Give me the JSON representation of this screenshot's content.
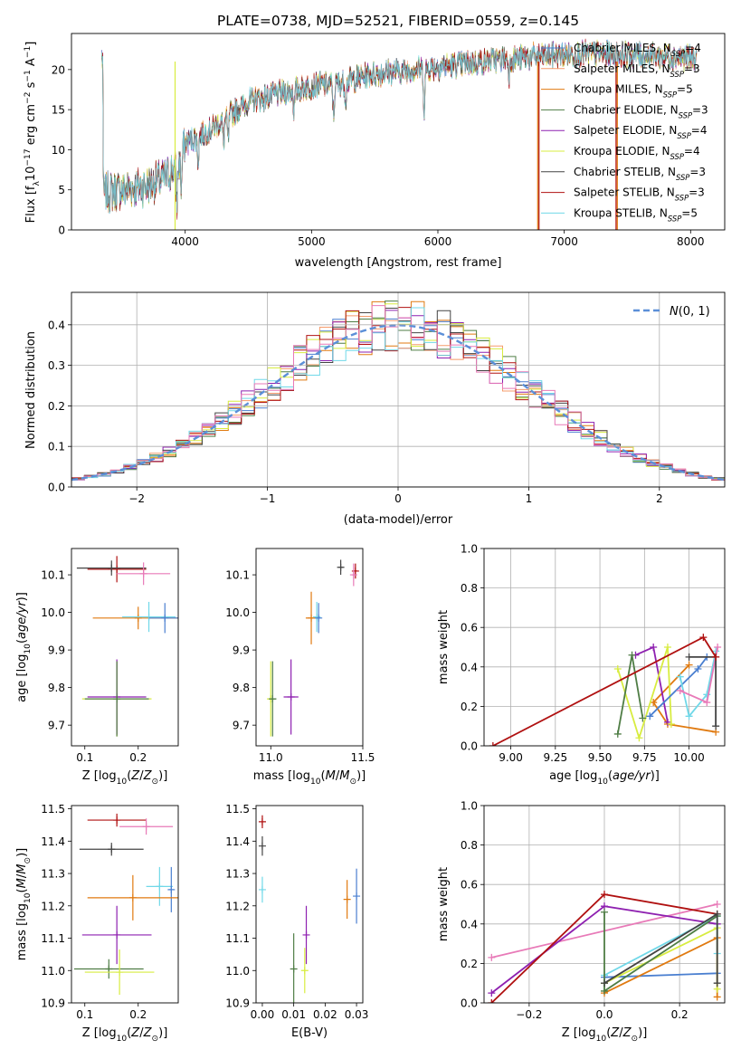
{
  "figure_title": "PLATE=0738, MJD=52521, FIBERID=0559, z=0.145",
  "colors": {
    "Chabrier MILES": "#4a7fd0",
    "Salpeter MILES": "#f59b6b",
    "Kroupa MILES": "#e07a10",
    "Chabrier ELODIE": "#4f7d45",
    "Salpeter ELODIE": "#8e20b0",
    "Kroupa ELODIE": "#d8ec40",
    "Chabrier STELIB": "#444444",
    "Salpeter STELIB": "#b01010",
    "Kroupa STELIB": "#70d8e8",
    "pink": "#e87ab8",
    "normal": "#5b8fd8"
  },
  "chart_data": [
    {
      "id": "spectrum",
      "type": "line",
      "xlabel": "wavelength [Angstrom, rest frame]",
      "ylabel": "Flux [f_λ10^-17 erg cm^-2 s^-1 A^-1]",
      "xlim": [
        3100,
        8270
      ],
      "ylim": [
        0,
        24.5
      ],
      "xticks": [
        4000,
        5000,
        6000,
        7000,
        8000
      ],
      "yticks": [
        0,
        5,
        10,
        15,
        20
      ],
      "legend": "upper right",
      "series_names": [
        "Chabrier MILES, N_SSP=4",
        "Salpeter MILES, N_SSP=3",
        "Kroupa MILES, N_SSP=5",
        "Chabrier ELODIE, N_SSP=3",
        "Salpeter ELODIE, N_SSP=4",
        "Kroupa ELODIE, N_SSP=4",
        "Chabrier STELIB, N_SSP=3",
        "Salpeter STELIB, N_SSP=3",
        "Kroupa STELIB, N_SSP=5"
      ],
      "continuum": [
        [
          3350,
          4.6
        ],
        [
          3500,
          5.0
        ],
        [
          3700,
          5.5
        ],
        [
          3850,
          6.5
        ],
        [
          3950,
          8.5
        ],
        [
          4000,
          10.8
        ],
        [
          4200,
          12.5
        ],
        [
          4500,
          16.0
        ],
        [
          4700,
          16.8
        ],
        [
          5000,
          18.0
        ],
        [
          5200,
          18.2
        ],
        [
          5500,
          19.5
        ],
        [
          5800,
          20.0
        ],
        [
          6100,
          20.5
        ],
        [
          6500,
          21.3
        ],
        [
          6900,
          21.8
        ],
        [
          7200,
          22.0
        ],
        [
          7600,
          21.8
        ],
        [
          8000,
          21.5
        ]
      ]
    },
    {
      "id": "residuals",
      "type": "line",
      "xlabel": "(data-model)/error",
      "ylabel": "Normed distribution",
      "xlim": [
        -2.5,
        2.5
      ],
      "ylim": [
        0,
        0.48
      ],
      "xticks": [
        -2,
        -1,
        0,
        1,
        2
      ],
      "yticks": [
        0.0,
        0.1,
        0.2,
        0.3,
        0.4
      ],
      "grid": true,
      "legend": "upper right",
      "reference_label": "N(0,1)",
      "bin_width": 0.1
    },
    {
      "id": "age-vs-Z",
      "type": "scatter",
      "xlabel": "Z [log10(Z/Z_sun)]",
      "ylabel": "age [log10(age/yr)]",
      "xlim": [
        0.075,
        0.275
      ],
      "ylim": [
        9.645,
        10.17
      ],
      "xticks": [
        0.1,
        0.2
      ],
      "yticks": [
        9.7,
        9.8,
        9.9,
        10.0,
        10.1
      ],
      "points": [
        {
          "c": "Salpeter STELIB",
          "x": 0.16,
          "y": 10.115,
          "xerr": 0.055,
          "yerr": 0.035
        },
        {
          "c": "Chabrier STELIB",
          "x": 0.15,
          "y": 10.118,
          "xerr": 0.065,
          "yerr": 0.02
        },
        {
          "c": "pink",
          "x": 0.21,
          "y": 10.103,
          "xerr": 0.05,
          "yerr": 0.03
        },
        {
          "c": "Kroupa MILES",
          "x": 0.2,
          "y": 9.985,
          "xerr": 0.085,
          "yerr": 0.03
        },
        {
          "c": "Kroupa STELIB",
          "x": 0.22,
          "y": 9.988,
          "xerr": 0.05,
          "yerr": 0.04
        },
        {
          "c": "Chabrier MILES",
          "x": 0.25,
          "y": 9.985,
          "xerr": 0.03,
          "yerr": 0.04
        },
        {
          "c": "Kroupa ELODIE",
          "x": 0.16,
          "y": 9.77,
          "xerr": 0.065,
          "yerr": 0.1
        },
        {
          "c": "Salpeter ELODIE",
          "x": 0.16,
          "y": 9.775,
          "xerr": 0.055,
          "yerr": 0.1
        },
        {
          "c": "Chabrier ELODIE",
          "x": 0.16,
          "y": 9.77,
          "xerr": 0.06,
          "yerr": 0.1
        }
      ]
    },
    {
      "id": "age-vs-mass",
      "type": "scatter",
      "xlabel": "mass [log10(M/M_sun)]",
      "xlim": [
        10.92,
        11.5
      ],
      "ylim": [
        9.645,
        10.17
      ],
      "xticks": [
        11.0,
        11.5
      ],
      "yticks": [
        9.7,
        9.8,
        9.9,
        10.0,
        10.1
      ],
      "points": [
        {
          "c": "Salpeter STELIB",
          "x": 11.46,
          "y": 10.11,
          "xerr": 0.01,
          "yerr": 0.02
        },
        {
          "c": "Chabrier STELIB",
          "x": 11.38,
          "y": 10.12,
          "xerr": 0.01,
          "yerr": 0.02
        },
        {
          "c": "pink",
          "x": 11.45,
          "y": 10.1,
          "xerr": 0.01,
          "yerr": 0.03
        },
        {
          "c": "Kroupa MILES",
          "x": 11.22,
          "y": 9.985,
          "xerr": 0.03,
          "yerr": 0.07
        },
        {
          "c": "Kroupa STELIB",
          "x": 11.25,
          "y": 9.988,
          "xerr": 0.02,
          "yerr": 0.04
        },
        {
          "c": "Chabrier MILES",
          "x": 11.26,
          "y": 9.985,
          "xerr": 0.01,
          "yerr": 0.04
        },
        {
          "c": "Salpeter ELODIE",
          "x": 11.11,
          "y": 9.775,
          "xerr": 0.04,
          "yerr": 0.1
        },
        {
          "c": "Kroupa ELODIE",
          "x": 11.0,
          "y": 9.77,
          "xerr": 0.02,
          "yerr": 0.1
        },
        {
          "c": "Chabrier ELODIE",
          "x": 11.01,
          "y": 9.77,
          "xerr": 0.02,
          "yerr": 0.1
        }
      ]
    },
    {
      "id": "mass-weight-vs-age",
      "type": "line",
      "xlabel": "age [log10(age/yr)]",
      "ylabel": "mass weight",
      "xlim": [
        8.85,
        10.2
      ],
      "ylim": [
        0,
        1.0
      ],
      "xticks": [
        9.0,
        9.25,
        9.5,
        9.75,
        10.0
      ],
      "yticks": [
        0.0,
        0.2,
        0.4,
        0.6,
        0.8,
        1.0
      ],
      "grid": true,
      "series": [
        {
          "c": "Kroupa MILES",
          "x": [
            10.0,
            9.8,
            9.88,
            10.15
          ],
          "y": [
            0.41,
            0.22,
            0.11,
            0.07
          ]
        },
        {
          "c": "Salpeter ELODIE",
          "x": [
            9.7,
            9.8,
            9.88
          ],
          "y": [
            0.46,
            0.5,
            0.12
          ]
        },
        {
          "c": "Kroupa ELODIE",
          "x": [
            9.6,
            9.72,
            9.88,
            9.9
          ],
          "y": [
            0.39,
            0.04,
            0.5,
            0.11
          ]
        },
        {
          "c": "Chabrier ELODIE",
          "x": [
            9.6,
            9.68,
            9.74
          ],
          "y": [
            0.06,
            0.46,
            0.14
          ]
        },
        {
          "c": "Chabrier MILES",
          "x": [
            9.78,
            10.05,
            10.1
          ],
          "y": [
            0.15,
            0.39,
            0.45
          ]
        },
        {
          "c": "Kroupa STELIB",
          "x": [
            9.95,
            10.0,
            10.1,
            10.15
          ],
          "y": [
            0.35,
            0.15,
            0.26,
            0.48
          ]
        },
        {
          "c": "pink",
          "x": [
            9.95,
            10.1,
            10.16
          ],
          "y": [
            0.28,
            0.22,
            0.5
          ]
        },
        {
          "c": "Chabrier STELIB",
          "x": [
            10.0,
            10.15,
            10.15
          ],
          "y": [
            0.45,
            0.45,
            0.1
          ]
        },
        {
          "c": "Salpeter STELIB",
          "x": [
            8.9,
            10.08,
            10.15
          ],
          "y": [
            0.0,
            0.55,
            0.45
          ]
        }
      ]
    },
    {
      "id": "mass-vs-Z",
      "type": "scatter",
      "xlabel": "Z [log10(Z/Z_sun)]",
      "ylabel": "mass [log10(M/M_sun)]",
      "xlim": [
        0.075,
        0.275
      ],
      "ylim": [
        10.9,
        11.51
      ],
      "xticks": [
        0.1,
        0.2
      ],
      "yticks": [
        10.9,
        11.0,
        11.1,
        11.2,
        11.3,
        11.4,
        11.5
      ],
      "points": [
        {
          "c": "Salpeter STELIB",
          "x": 0.16,
          "y": 11.465,
          "xerr": 0.055,
          "yerr": 0.02
        },
        {
          "c": "pink",
          "x": 0.215,
          "y": 11.445,
          "xerr": 0.05,
          "yerr": 0.025
        },
        {
          "c": "Chabrier STELIB",
          "x": 0.15,
          "y": 11.375,
          "xerr": 0.06,
          "yerr": 0.02
        },
        {
          "c": "Kroupa STELIB",
          "x": 0.24,
          "y": 11.26,
          "xerr": 0.025,
          "yerr": 0.06
        },
        {
          "c": "Chabrier MILES",
          "x": 0.262,
          "y": 11.25,
          "xerr": 0.005,
          "yerr": 0.07
        },
        {
          "c": "Kroupa MILES",
          "x": 0.19,
          "y": 11.225,
          "xerr": 0.085,
          "yerr": 0.07
        },
        {
          "c": "Salpeter ELODIE",
          "x": 0.16,
          "y": 11.11,
          "xerr": 0.065,
          "yerr": 0.09
        },
        {
          "c": "Chabrier ELODIE",
          "x": 0.145,
          "y": 11.005,
          "xerr": 0.065,
          "yerr": 0.03
        },
        {
          "c": "Kroupa ELODIE",
          "x": 0.165,
          "y": 10.995,
          "xerr": 0.065,
          "yerr": 0.07
        }
      ]
    },
    {
      "id": "mass-vs-ebv",
      "type": "scatter",
      "xlabel": "E(B-V)",
      "xlim": [
        -0.002,
        0.032
      ],
      "ylim": [
        10.9,
        11.51
      ],
      "xticks": [
        0.0,
        0.01,
        0.02,
        0.03
      ],
      "yticks": [
        10.9,
        11.0,
        11.1,
        11.2,
        11.3,
        11.4,
        11.5
      ],
      "points": [
        {
          "c": "Salpeter STELIB",
          "x": 0.0,
          "y": 11.46,
          "xerr": 0,
          "yerr": 0.02
        },
        {
          "c": "Chabrier STELIB",
          "x": 0.0,
          "y": 11.385,
          "xerr": 0,
          "yerr": 0.03
        },
        {
          "c": "Kroupa STELIB",
          "x": 0.0,
          "y": 11.25,
          "xerr": 0,
          "yerr": 0.04
        },
        {
          "c": "Chabrier MILES",
          "x": 0.03,
          "y": 11.23,
          "xerr": 0,
          "yerr": 0.085
        },
        {
          "c": "Kroupa MILES",
          "x": 0.027,
          "y": 11.22,
          "xerr": 0,
          "yerr": 0.06
        },
        {
          "c": "Salpeter ELODIE",
          "x": 0.014,
          "y": 11.11,
          "xerr": 0,
          "yerr": 0.09
        },
        {
          "c": "Chabrier ELODIE",
          "x": 0.01,
          "y": 11.005,
          "xerr": 0,
          "yerr": 0.11
        },
        {
          "c": "Kroupa ELODIE",
          "x": 0.0135,
          "y": 11.0,
          "xerr": 0,
          "yerr": 0.07
        }
      ]
    },
    {
      "id": "mass-weight-vs-Z",
      "type": "line",
      "xlabel": "Z [log10(Z/Z_sun)]",
      "ylabel": "mass weight",
      "xlim": [
        -0.32,
        0.32
      ],
      "ylim": [
        0,
        1.0
      ],
      "xticks": [
        -0.2,
        0.0,
        0.2
      ],
      "yticks": [
        0.0,
        0.2,
        0.4,
        0.6,
        0.8,
        1.0
      ],
      "grid": true,
      "series": [
        {
          "c": "pink",
          "x": [
            -0.3,
            0.3
          ],
          "y": [
            0.23,
            0.5
          ]
        },
        {
          "c": "Salpeter ELODIE",
          "x": [
            -0.3,
            0.0,
            0.3
          ],
          "y": [
            0.05,
            0.49,
            0.4
          ]
        },
        {
          "c": "Salpeter STELIB",
          "x": [
            -0.3,
            0.0,
            0.3
          ],
          "y": [
            0.0,
            0.55,
            0.45
          ]
        },
        {
          "c": "Chabrier MILES",
          "x": [
            0.0,
            0.3
          ],
          "y": [
            0.13,
            0.15
          ]
        },
        {
          "c": "Kroupa MILES",
          "x": [
            0.0,
            0.3,
            0.3
          ],
          "y": [
            0.05,
            0.33,
            0.03
          ]
        },
        {
          "c": "Kroupa ELODIE",
          "x": [
            0.0,
            0.3,
            0.3
          ],
          "y": [
            0.1,
            0.38,
            0.07
          ]
        },
        {
          "c": "Kroupa STELIB",
          "x": [
            0.0,
            0.3,
            0.3
          ],
          "y": [
            0.14,
            0.44,
            0.25
          ]
        },
        {
          "c": "Chabrier ELODIE",
          "x": [
            0.0,
            0.0,
            0.3
          ],
          "y": [
            0.46,
            0.06,
            0.44
          ]
        },
        {
          "c": "Chabrier STELIB",
          "x": [
            0.0,
            0.3,
            0.3
          ],
          "y": [
            0.1,
            0.45,
            0.1
          ]
        }
      ]
    }
  ]
}
